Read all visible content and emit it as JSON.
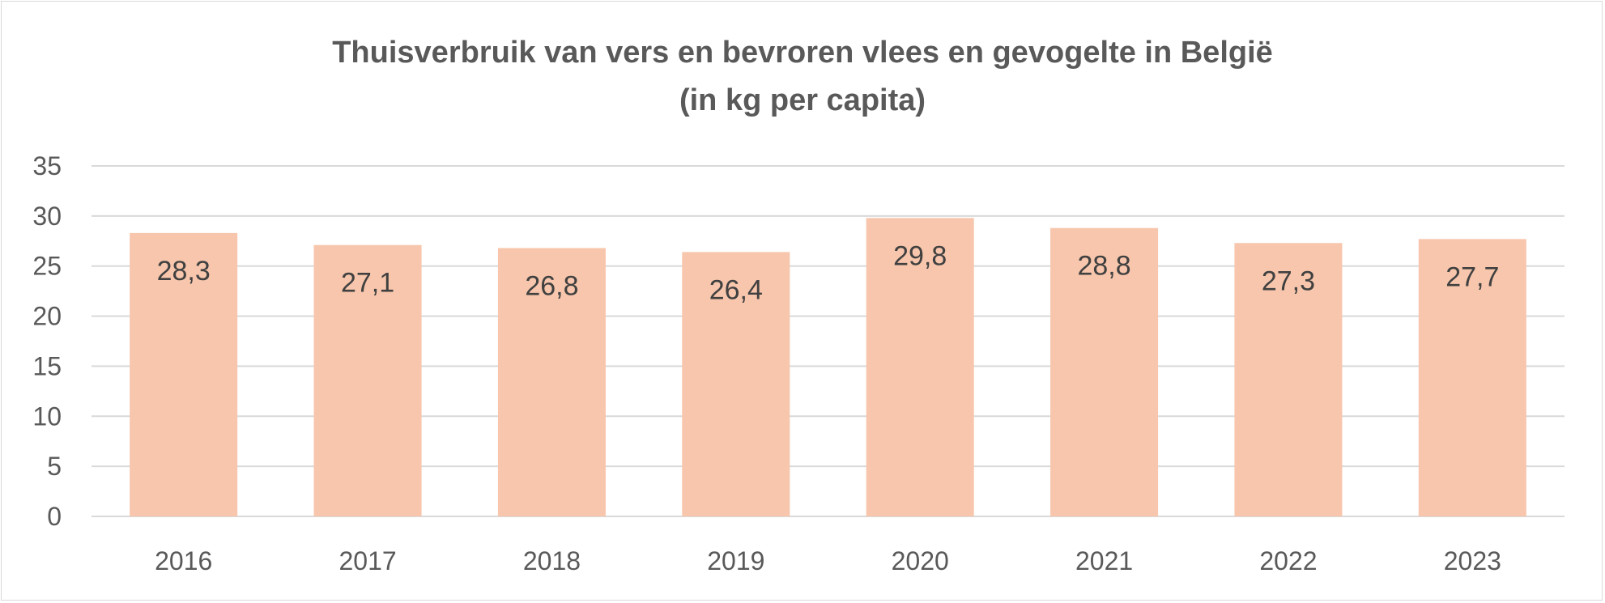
{
  "chart_data": {
    "type": "bar",
    "title_line1": "Thuisverbruik van vers en bevroren vlees en gevogelte in België",
    "title_line2": "(in kg per capita)",
    "categories": [
      "2016",
      "2017",
      "2018",
      "2019",
      "2020",
      "2021",
      "2022",
      "2023"
    ],
    "values": [
      28.3,
      27.1,
      26.8,
      26.4,
      29.8,
      28.8,
      27.3,
      27.7
    ],
    "data_labels": [
      "28,3",
      "27,1",
      "26,8",
      "26,4",
      "29,8",
      "28,8",
      "27,3",
      "27,7"
    ],
    "ylim": [
      0,
      35
    ],
    "yticks": [
      0,
      5,
      10,
      15,
      20,
      25,
      30,
      35
    ],
    "grid": true,
    "legend": "none",
    "bar_color": "#F7C6AC",
    "grid_color": "#d9d9d9"
  }
}
